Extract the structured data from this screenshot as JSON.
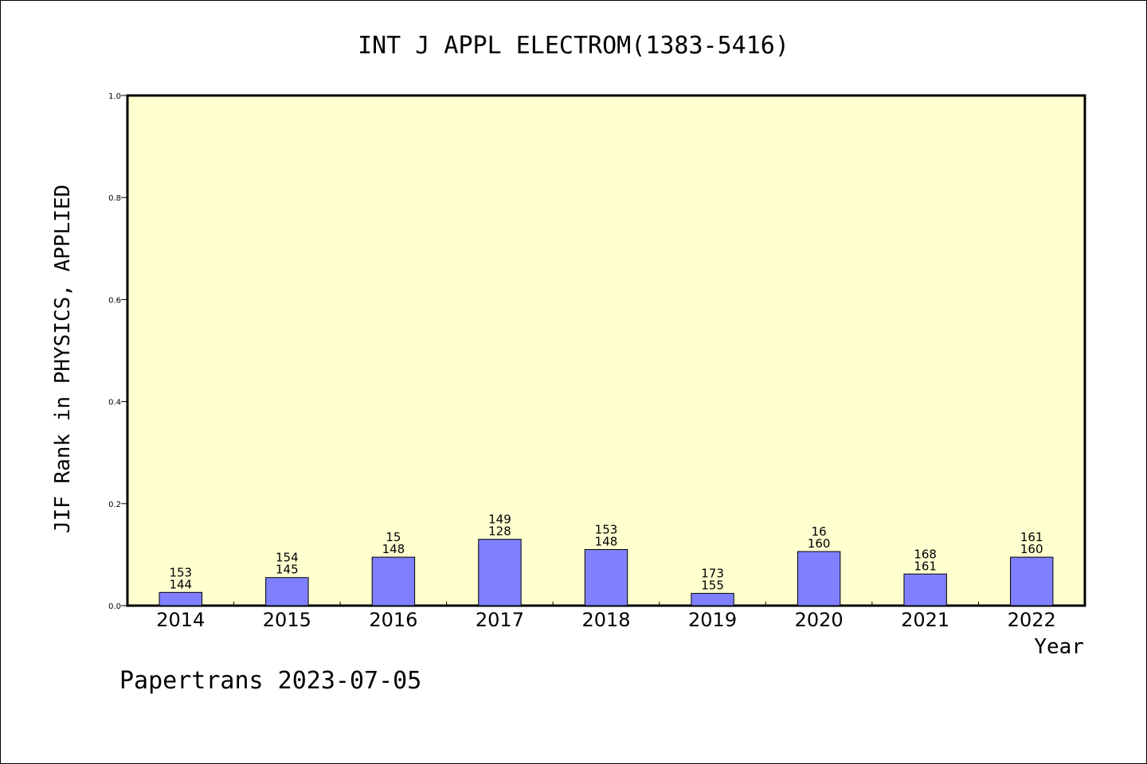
{
  "chart_data": {
    "type": "bar",
    "title": "INT J APPL ELECTROM(1383-5416)",
    "xlabel": "Year",
    "ylabel": "JIF Rank in PHYSICS, APPLIED",
    "ylim": [
      0.0,
      1.0
    ],
    "yticks": [
      "0.0",
      "0.2",
      "0.4",
      "0.6",
      "0.8",
      "1.0"
    ],
    "categories": [
      "2014",
      "2015",
      "2016",
      "2017",
      "2018",
      "2019",
      "2020",
      "2021",
      "2022"
    ],
    "values": [
      0.026,
      0.055,
      0.095,
      0.13,
      0.11,
      0.024,
      0.106,
      0.062,
      0.095
    ],
    "label_top": [
      "153",
      "154",
      "15",
      "149",
      "153",
      "173",
      "16",
      "168",
      "161"
    ],
    "label_bottom": [
      "144",
      "145",
      "148",
      "128",
      "148",
      "155",
      "160",
      "161",
      "160"
    ],
    "grid": false,
    "colors": {
      "bar": "#8080ff",
      "plot_bg": "#ffffd0"
    }
  },
  "footer": "Papertrans 2023-07-05"
}
